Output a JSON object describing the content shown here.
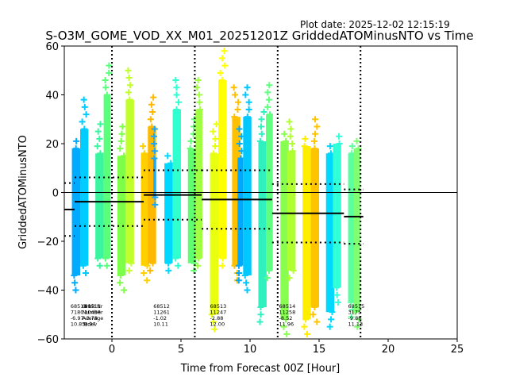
{
  "chart_data": {
    "type": "scatter",
    "plot_date": "Plot date: 2025-12-02 12:15:19",
    "title": "S-O3M_GOME_VOD_XX_M01_20251201Z GriddedATOMinusNTO vs Time",
    "xlabel": "Time from Forecast 00Z [Hour]",
    "ylabel": "GriddedATOMinusNTO",
    "xlim": [
      -3.45,
      25
    ],
    "ylim": [
      -60,
      60
    ],
    "x_ticks": [
      0,
      5,
      10,
      15,
      20,
      25
    ],
    "x_tick_labels": [
      "0",
      "5",
      "10",
      "15",
      "20",
      "25"
    ],
    "y_ticks": [
      -60,
      -40,
      -20,
      0,
      20,
      40,
      60
    ],
    "y_tick_labels": [
      "−60",
      "−40",
      "−20",
      "0",
      "20",
      "40",
      "60"
    ],
    "zero_line": 0,
    "forecast_boundaries": [
      0,
      6,
      12,
      18
    ],
    "stat_header": [
      "Orbit Nr",
      "Number",
      "Average",
      "Stdev"
    ],
    "orbits": [
      {
        "orbit": "68510",
        "number": "7180",
        "average": "-6.97",
        "stdev": "10.83",
        "avg": -6.97,
        "sd": 10.83,
        "t_start": -3.45,
        "t_end": -2.7,
        "label_x": -3.0
      },
      {
        "orbit": "68511",
        "number": "10498",
        "average": "-3.78",
        "stdev": "9.97",
        "avg": -3.78,
        "sd": 9.97,
        "t_start": -2.7,
        "t_end": 2.3,
        "label_x": -2.0,
        "overlaps_header": true
      },
      {
        "orbit": "68512",
        "number": "11261",
        "average": "-1.02",
        "stdev": "10.11",
        "avg": -1.02,
        "sd": 10.11,
        "t_start": 2.3,
        "t_end": 6.5,
        "label_x": 3.0
      },
      {
        "orbit": "68513",
        "number": "11247",
        "average": "-2.88",
        "stdev": "12.00",
        "avg": -2.88,
        "sd": 12.0,
        "t_start": 6.5,
        "t_end": 11.6,
        "label_x": 7.1
      },
      {
        "orbit": "68514",
        "number": "11258",
        "average": "-8.52",
        "stdev": "11.96",
        "avg": -8.52,
        "sd": 11.96,
        "t_start": 11.6,
        "t_end": 16.8,
        "label_x": 12.1
      },
      {
        "orbit": "68515",
        "number": "3175",
        "average": "-9.88",
        "stdev": "11.13",
        "avg": -9.88,
        "sd": 11.13,
        "t_start": 16.8,
        "t_end": 18.2,
        "label_x": 17.1
      }
    ],
    "strips": [
      {
        "t": -2.6,
        "w": 0.6,
        "lo": -42,
        "hi": 22,
        "color": "#00aaff"
      },
      {
        "t": -2.0,
        "w": 0.6,
        "lo": -33,
        "hi": 38,
        "color": "#00ccff"
      },
      {
        "t": -0.9,
        "w": 0.6,
        "lo": -30,
        "hi": 28,
        "color": "#3af5a0"
      },
      {
        "t": -0.35,
        "w": 0.5,
        "lo": -30,
        "hi": 52,
        "color": "#5aff7a"
      },
      {
        "t": 0.7,
        "w": 0.6,
        "lo": -42,
        "hi": 27,
        "color": "#7dff4a"
      },
      {
        "t": 1.3,
        "w": 0.6,
        "lo": -32,
        "hi": 50,
        "color": "#c0ff2a"
      },
      {
        "t": 2.4,
        "w": 0.6,
        "lo": -38,
        "hi": 20,
        "color": "#ffd000"
      },
      {
        "t": 2.9,
        "w": 0.6,
        "lo": -32,
        "hi": 39,
        "color": "#ffb800"
      },
      {
        "t": 3.1,
        "w": 0.2,
        "lo": -5,
        "hi": 26,
        "color": "#1aa8ff"
      },
      {
        "t": 4.1,
        "w": 0.6,
        "lo": -32,
        "hi": 16,
        "color": "#00d8ff"
      },
      {
        "t": 4.7,
        "w": 0.6,
        "lo": -30,
        "hi": 46,
        "color": "#30ffd0"
      },
      {
        "t": 5.8,
        "w": 0.6,
        "lo": -32,
        "hi": 30,
        "color": "#60ff70"
      },
      {
        "t": 6.3,
        "w": 0.5,
        "lo": -30,
        "hi": 46,
        "color": "#a0ff40"
      },
      {
        "t": 7.4,
        "w": 0.6,
        "lo": -58,
        "hi": 28,
        "color": "#e8ff10"
      },
      {
        "t": 8.0,
        "w": 0.6,
        "lo": -30,
        "hi": 58,
        "color": "#ffff00"
      },
      {
        "t": 9.0,
        "w": 0.6,
        "lo": -38,
        "hi": 43,
        "color": "#ffc000"
      },
      {
        "t": 9.3,
        "w": 0.4,
        "lo": -38,
        "hi": 26,
        "color": "#00a8ff"
      },
      {
        "t": 9.8,
        "w": 0.6,
        "lo": -42,
        "hi": 43,
        "color": "#00c8ff"
      },
      {
        "t": 10.9,
        "w": 0.6,
        "lo": -55,
        "hi": 33,
        "color": "#30f0c0"
      },
      {
        "t": 11.4,
        "w": 0.5,
        "lo": -35,
        "hi": 44,
        "color": "#60ff80"
      },
      {
        "t": 12.5,
        "w": 0.6,
        "lo": -60,
        "hi": 25,
        "color": "#88ff50"
      },
      {
        "t": 13.0,
        "w": 0.6,
        "lo": -35,
        "hi": 29,
        "color": "#b0ff30"
      },
      {
        "t": 14.1,
        "w": 0.6,
        "lo": -60,
        "hi": 23,
        "color": "#ffee00"
      },
      {
        "t": 14.7,
        "w": 0.6,
        "lo": -55,
        "hi": 30,
        "color": "#ffc400"
      },
      {
        "t": 15.8,
        "w": 0.6,
        "lo": -57,
        "hi": 20,
        "color": "#00d8ff"
      },
      {
        "t": 16.3,
        "w": 0.6,
        "lo": -47,
        "hi": 24,
        "color": "#30ffd8"
      },
      {
        "t": 17.3,
        "w": 0.4,
        "lo": -53,
        "hi": 20,
        "color": "#5cffa0"
      },
      {
        "t": 17.75,
        "w": 0.5,
        "lo": -57,
        "hi": 22,
        "color": "#80ff70"
      }
    ]
  }
}
